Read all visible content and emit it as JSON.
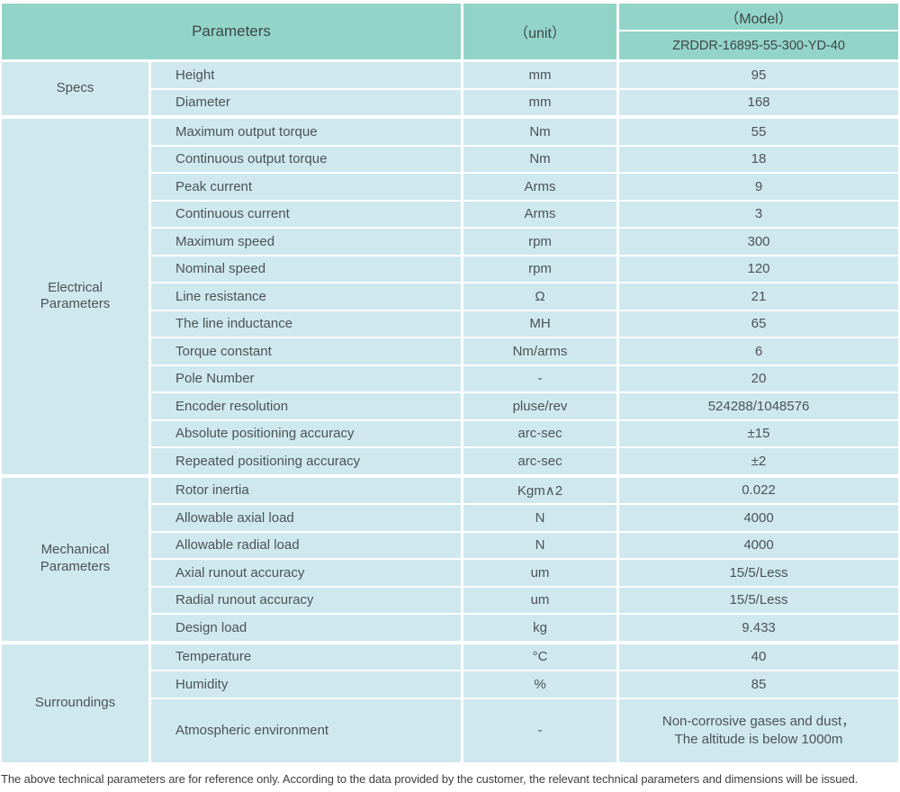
{
  "colors": {
    "header_teal": "#93d4c9",
    "cell_blue": "#cfe8ee",
    "border_white": "#ffffff",
    "text_dark": "#4b5357"
  },
  "table": {
    "header": {
      "parameters_label": "Parameters",
      "unit_label": "（unit）",
      "model_label": "（Model）",
      "model_value": "ZRDDR-16895-55-300-YD-40"
    },
    "sections": [
      {
        "category": "Specs",
        "rows": [
          {
            "label": "Height",
            "unit": "mm",
            "value": "95"
          },
          {
            "label": "Diameter",
            "unit": "mm",
            "value": "168"
          }
        ]
      },
      {
        "category": "Electrical\nParameters",
        "rows": [
          {
            "label": "Maximum output torque",
            "unit": "Nm",
            "value": "55"
          },
          {
            "label": "Continuous output torque",
            "unit": "Nm",
            "value": "18"
          },
          {
            "label": "Peak current",
            "unit": "Arms",
            "value": "9"
          },
          {
            "label": "Continuous current",
            "unit": "Arms",
            "value": "3"
          },
          {
            "label": "Maximum speed",
            "unit": "rpm",
            "value": "300"
          },
          {
            "label": "Nominal speed",
            "unit": "rpm",
            "value": "120"
          },
          {
            "label": "Line resistance",
            "unit": "Ω",
            "value": "21"
          },
          {
            "label": "The line inductance",
            "unit": "MH",
            "value": "65"
          },
          {
            "label": "Torque constant",
            "unit": "Nm/arms",
            "value": "6"
          },
          {
            "label": "Pole Number",
            "unit": "-",
            "value": "20"
          },
          {
            "label": "Encoder resolution",
            "unit": "pluse/rev",
            "value": "524288/1048576"
          },
          {
            "label": "Absolute positioning accuracy",
            "unit": "arc-sec",
            "value": "±15"
          },
          {
            "label": "Repeated positioning accuracy",
            "unit": "arc-sec",
            "value": "±2"
          }
        ]
      },
      {
        "category": "Mechanical\nParameters",
        "rows": [
          {
            "label": "Rotor inertia",
            "unit": "Kgm∧2",
            "value": "0.022"
          },
          {
            "label": "Allowable axial load",
            "unit": "N",
            "value": "4000"
          },
          {
            "label": "Allowable radial load",
            "unit": "N",
            "value": "4000"
          },
          {
            "label": "Axial runout accuracy",
            "unit": "um",
            "value": "15/5/Less"
          },
          {
            "label": "Radial runout accuracy",
            "unit": "um",
            "value": "15/5/Less"
          },
          {
            "label": "Design load",
            "unit": "kg",
            "value": "9.433"
          }
        ]
      },
      {
        "category": "Surroundings",
        "rows": [
          {
            "label": "Temperature",
            "unit": "°C",
            "value": "40"
          },
          {
            "label": "Humidity",
            "unit": "%",
            "value": "85"
          },
          {
            "label": "Atmospheric environment",
            "unit": "-",
            "value": "Non-corrosive gases and dust，\nThe altitude is below 1000m"
          }
        ]
      }
    ],
    "footer_note": "The above technical parameters are for reference only. According to the data provided by the customer, the relevant technical parameters and dimensions will be issued."
  }
}
